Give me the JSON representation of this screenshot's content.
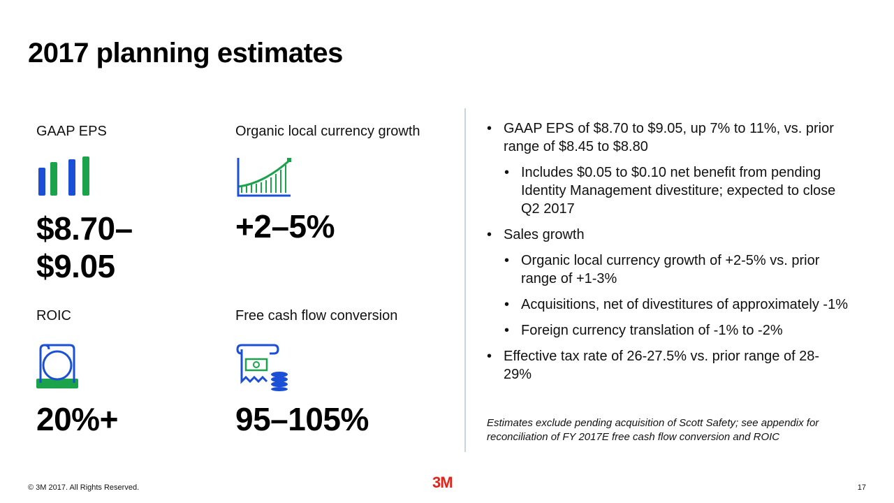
{
  "title": "2017 planning estimates",
  "metrics": [
    {
      "label": "GAAP EPS",
      "value_line1": "$8.70–",
      "value_line2": "$9.05",
      "icon": "bar-chart-icon"
    },
    {
      "label": "Organic local currency growth",
      "value_line1": "+2–5%",
      "icon": "growth-chart-icon"
    },
    {
      "label": "ROIC",
      "value_line1": "20%+",
      "icon": "return-on-capital-icon"
    },
    {
      "label": "Free cash flow conversion",
      "value_line1": "95–105%",
      "icon": "cash-flow-icon"
    }
  ],
  "bullets": [
    {
      "level": 1,
      "text": "GAAP EPS of $8.70 to $9.05, up 7% to 11%, vs. prior range of $8.45 to $8.80"
    },
    {
      "level": 2,
      "text": "Includes $0.05 to $0.10 net benefit from pending Identity Management divestiture; expected to close Q2 2017"
    },
    {
      "level": 1,
      "text": "Sales growth"
    },
    {
      "level": 2,
      "text": "Organic local currency growth of +2-5% vs. prior range of +1-3%"
    },
    {
      "level": 2,
      "text": "Acquisitions, net of divestitures of approximately -1%"
    },
    {
      "level": 2,
      "text": "Foreign currency translation of -1% to -2%"
    },
    {
      "level": 1,
      "text": "Effective tax rate of 26-27.5% vs. prior range of 28- 29%"
    }
  ],
  "note": "Estimates exclude pending acquisition of Scott Safety; see appendix for reconciliation of FY 2017E free cash flow conversion and ROIC",
  "footer": {
    "copyright": "© 3M 2017. All Rights Reserved.",
    "logo": "3M",
    "page_number": "17"
  },
  "colors": {
    "blue": "#1a4fd6",
    "green": "#1aa34a",
    "logo_red": "#e2231a",
    "divider": "#c7d3e6"
  }
}
